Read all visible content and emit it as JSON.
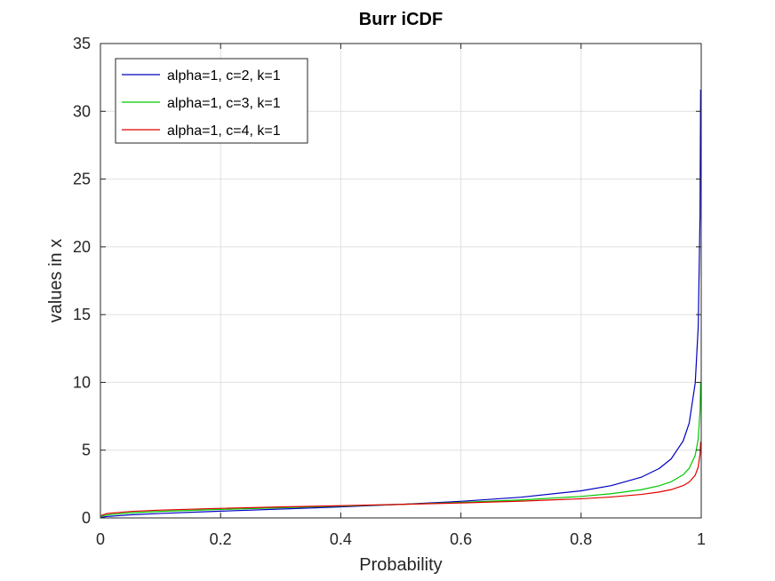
{
  "chart_data": {
    "type": "line",
    "title": "Burr iCDF",
    "xlabel": "Probability",
    "ylabel": "values in x",
    "xlim": [
      0,
      1
    ],
    "ylim": [
      0,
      35
    ],
    "xticks": [
      0,
      0.2,
      0.4,
      0.6,
      0.8,
      1
    ],
    "xtick_labels": [
      "0",
      "0.2",
      "0.4",
      "0.6",
      "0.8",
      "1"
    ],
    "yticks": [
      0,
      5,
      10,
      15,
      20,
      25,
      30,
      35
    ],
    "ytick_labels": [
      "0",
      "5",
      "10",
      "15",
      "20",
      "25",
      "30",
      "35"
    ],
    "grid": true,
    "legend_position": "top-left",
    "x": [
      0.001,
      0.01,
      0.05,
      0.1,
      0.2,
      0.3,
      0.4,
      0.5,
      0.6,
      0.7,
      0.8,
      0.85,
      0.9,
      0.93,
      0.95,
      0.97,
      0.98,
      0.99,
      0.995,
      0.998,
      0.999
    ],
    "series": [
      {
        "name": "alpha=1, c=2, k=1",
        "color": "#0000bf",
        "values": [
          0.032,
          0.101,
          0.229,
          0.333,
          0.5,
          0.655,
          0.816,
          1.0,
          1.225,
          1.528,
          2.0,
          2.381,
          3.0,
          3.645,
          4.359,
          5.686,
          7.0,
          9.95,
          14.1,
          22.3,
          31.6
        ]
      },
      {
        "name": "alpha=1, c=3, k=1",
        "color": "#00c800",
        "values": [
          0.1,
          0.217,
          0.375,
          0.481,
          0.63,
          0.754,
          0.874,
          1.0,
          1.145,
          1.327,
          1.587,
          1.785,
          2.08,
          2.37,
          2.67,
          3.19,
          3.66,
          4.62,
          5.83,
          7.93,
          10.0
        ]
      },
      {
        "name": "alpha=1, c=4, k=1",
        "color": "#e00000",
        "values": [
          0.178,
          0.318,
          0.479,
          0.577,
          0.707,
          0.809,
          0.904,
          1.0,
          1.107,
          1.236,
          1.414,
          1.543,
          1.732,
          1.909,
          2.088,
          2.385,
          2.646,
          3.15,
          3.76,
          4.72,
          5.62
        ]
      }
    ]
  }
}
